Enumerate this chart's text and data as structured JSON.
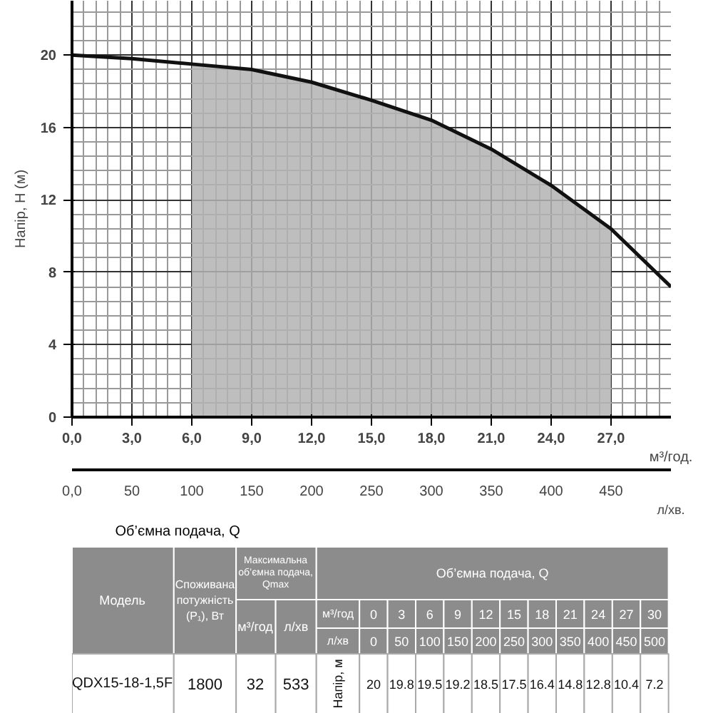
{
  "chart_data": {
    "type": "line",
    "xlabel": "м³/год.",
    "ylabel": "Напір, Н (м)",
    "x2label": "л/хв.",
    "x": [
      0,
      3,
      6,
      9,
      12,
      15,
      18,
      21,
      24,
      27,
      30
    ],
    "series": [
      {
        "type": "area",
        "color": "#b3b3b3",
        "x": [
          6,
          9,
          12,
          15,
          18,
          21,
          24,
          27
        ],
        "values": [
          19.5,
          19.2,
          18.5,
          17.5,
          16.4,
          14.8,
          12.8,
          10.4
        ]
      },
      {
        "color": "#111111",
        "values": [
          20,
          19.8,
          19.5,
          19.2,
          18.5,
          17.5,
          16.4,
          14.8,
          12.8,
          10.4,
          7.2
        ]
      }
    ],
    "xlim": [
      0,
      30
    ],
    "ylim": [
      0,
      23
    ],
    "xticks": [
      {
        "value": 0,
        "label": "0,0"
      },
      {
        "value": 3,
        "label": "3,0"
      },
      {
        "value": 6,
        "label": "6,0"
      },
      {
        "value": 9,
        "label": "9,0"
      },
      {
        "value": 12,
        "label": "12,0"
      },
      {
        "value": 15,
        "label": "15,0"
      },
      {
        "value": 18,
        "label": "18,0"
      },
      {
        "value": 21,
        "label": "21,0"
      },
      {
        "value": 24,
        "label": "24,0"
      },
      {
        "value": 27,
        "label": "27,0"
      }
    ],
    "yticks": [
      0,
      4,
      8,
      12,
      16,
      20
    ],
    "x2lim": [
      0,
      500
    ],
    "x2ticks": [
      {
        "value": 0,
        "label": "0,0"
      },
      50,
      100,
      150,
      200,
      250,
      300,
      350,
      400,
      450
    ],
    "grid": true,
    "annotations": [
      "Об’ємна подача, Q",
      "Модель",
      "Споживана потужність (P₁), Вт",
      "Максимальна об’ємна подача, Qmax",
      "Об’ємна подача, Q",
      "м³/год",
      "л/хв",
      "м³/год",
      "л/хв",
      "QDX15-18-1,5F",
      "1800",
      "32",
      "533",
      "Напір, м",
      "0",
      "50",
      "100",
      "150",
      "200",
      "250",
      "300",
      "350",
      "400",
      "450",
      "500",
      "0",
      "3",
      "6",
      "9",
      "12",
      "15",
      "18",
      "21",
      "24",
      "27",
      "30",
      "20",
      "19.8",
      "19.5",
      "19.2",
      "18.5",
      "17.5",
      "16.4",
      "14.8",
      "12.8",
      "10.4",
      "7.2"
    ]
  }
}
